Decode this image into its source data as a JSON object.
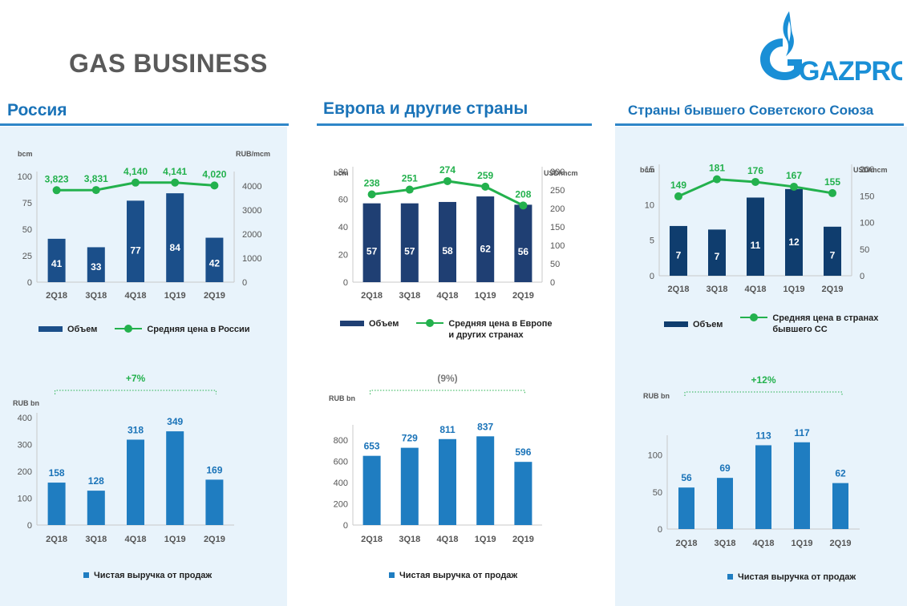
{
  "page": {
    "title": "GAS BUSINESS",
    "logo_text": "GAZPROM"
  },
  "colors": {
    "bar_dark": "#1b4f8a",
    "bar_navy": "#1f3f73",
    "bar_darkest": "#0f3d6e",
    "bar_light": "#1f7dc1",
    "line_green": "#23b14d",
    "accent_blue": "#1a73b8",
    "panel_bg": "#e8f3fb"
  },
  "panels": [
    {
      "title": "Россия",
      "legend_top": {
        "volume": "Объем",
        "price": "Средняя цена в России"
      },
      "legend_bottom": {
        "revenue": "Чистая выручка от продаж"
      }
    },
    {
      "title": "Европа и другие страны",
      "legend_top": {
        "volume": "Объем",
        "price": "Средняя цена в Европе\nи других странах"
      },
      "legend_bottom": {
        "revenue": "Чистая выручка от продаж"
      }
    },
    {
      "title": "Страны бывшего Советского Союза",
      "legend_top": {
        "volume": "Объем",
        "price": "Средняя цена в странах\nбывшего СС"
      },
      "legend_bottom": {
        "revenue": "Чистая выручка от продаж"
      }
    }
  ],
  "chart_data": [
    {
      "id": "russia-volume-price",
      "type": "bar+line",
      "categories": [
        "2Q18",
        "3Q18",
        "4Q18",
        "1Q19",
        "2Q19"
      ],
      "series": [
        {
          "name": "Объем",
          "axis": "left",
          "values": [
            41,
            33,
            77,
            84,
            42
          ],
          "labels": [
            "41",
            "33",
            "77",
            "84",
            "42"
          ]
        },
        {
          "name": "Средняя цена в России",
          "axis": "right",
          "values": [
            3823,
            3831,
            4140,
            4141,
            4020
          ],
          "labels": [
            "3,823",
            "3,831",
            "4,140",
            "4,141",
            "4,020"
          ]
        }
      ],
      "left_axis": {
        "label": "bcm",
        "min": 0,
        "max": 100,
        "ticks": [
          "0",
          "25",
          "50",
          "75",
          "100"
        ]
      },
      "right_axis": {
        "label": "RUB/mcm",
        "min": 0,
        "max": 4400,
        "ticks": [
          "0",
          "1000",
          "2000",
          "3000",
          "4000"
        ]
      }
    },
    {
      "id": "russia-revenue",
      "type": "bar",
      "categories": [
        "2Q18",
        "3Q18",
        "4Q18",
        "1Q19",
        "2Q19"
      ],
      "values": [
        158,
        128,
        318,
        349,
        169
      ],
      "labels": [
        "158",
        "128",
        "318",
        "349",
        "169"
      ],
      "ylabel": "RUB bn",
      "ylim": [
        0,
        400
      ],
      "ticks": [
        "0",
        "100",
        "200",
        "300",
        "400"
      ],
      "change": "+7%"
    },
    {
      "id": "europe-volume-price",
      "type": "bar+line",
      "categories": [
        "2Q18",
        "3Q18",
        "4Q18",
        "1Q19",
        "2Q19"
      ],
      "series": [
        {
          "name": "Объем",
          "axis": "left",
          "values": [
            57,
            57,
            58,
            62,
            56
          ],
          "labels": [
            "57",
            "57",
            "58",
            "62",
            "56"
          ]
        },
        {
          "name": "Средняя цена в Европе и других странах",
          "axis": "right",
          "values": [
            238,
            251,
            274,
            259,
            208
          ],
          "labels": [
            "238",
            "251",
            "274",
            "259",
            "208"
          ]
        }
      ],
      "left_axis": {
        "label": "bcm",
        "min": 0,
        "max": 80,
        "ticks": [
          "0",
          "20",
          "40",
          "60",
          "80"
        ]
      },
      "right_axis": {
        "label": "USD/mcm",
        "min": 0,
        "max": 300,
        "ticks": [
          "0",
          "50",
          "100",
          "150",
          "200",
          "250",
          "300"
        ]
      }
    },
    {
      "id": "europe-revenue",
      "type": "bar",
      "categories": [
        "2Q18",
        "3Q18",
        "4Q18",
        "1Q19",
        "2Q19"
      ],
      "values": [
        653,
        729,
        811,
        837,
        596
      ],
      "labels": [
        "653",
        "729",
        "811",
        "837",
        "596"
      ],
      "ylabel": "RUB bn",
      "ylim": [
        0,
        900
      ],
      "ticks": [
        "0",
        "200",
        "400",
        "600",
        "800"
      ],
      "change": "(9%)"
    },
    {
      "id": "fsu-volume-price",
      "type": "bar+line",
      "categories": [
        "2Q18",
        "3Q18",
        "4Q18",
        "1Q19",
        "2Q19"
      ],
      "series": [
        {
          "name": "Объем",
          "axis": "left",
          "values": [
            7,
            6.5,
            11,
            12.2,
            6.9
          ],
          "labels": [
            "7",
            "7",
            "11",
            "12",
            "7"
          ]
        },
        {
          "name": "Средняя цена в странах бывшего СС",
          "axis": "right",
          "values": [
            149,
            181,
            176,
            167,
            155
          ],
          "labels": [
            "149",
            "181",
            "176",
            "167",
            "155"
          ]
        }
      ],
      "left_axis": {
        "label": "bcm",
        "min": 0,
        "max": 15,
        "ticks": [
          "0",
          "5",
          "10",
          "15"
        ]
      },
      "right_axis": {
        "label": "USD/mcm",
        "min": 0,
        "max": 200,
        "ticks": [
          "0",
          "50",
          "100",
          "150",
          "200"
        ]
      }
    },
    {
      "id": "fsu-revenue",
      "type": "bar",
      "categories": [
        "2Q18",
        "3Q18",
        "4Q18",
        "1Q19",
        "2Q19"
      ],
      "values": [
        56,
        69,
        113,
        117,
        62
      ],
      "labels": [
        "56",
        "69",
        "113",
        "117",
        "62"
      ],
      "ylabel": "RUB bn",
      "ylim": [
        0,
        120
      ],
      "ticks": [
        "0",
        "50",
        "100"
      ],
      "change": "+12%"
    }
  ]
}
